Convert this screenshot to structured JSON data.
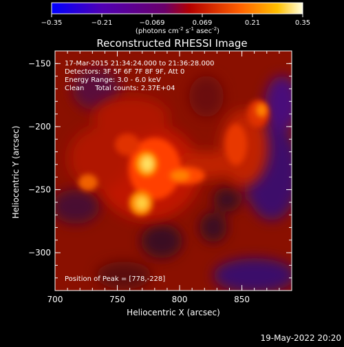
{
  "chart_data": {
    "type": "heatmap",
    "title": "Reconstructed RHESSI Image",
    "xlabel": "Heliocentric X (arcsec)",
    "ylabel": "Heliocentric Y (arcsec)",
    "xlim": [
      700,
      890
    ],
    "ylim": [
      -330,
      -140
    ],
    "xticks": [
      700,
      750,
      800,
      850
    ],
    "yticks": [
      -150,
      -200,
      -250,
      -300
    ],
    "colorbar": {
      "range": [
        -0.35,
        0.35
      ],
      "ticks": [
        "-0.35",
        "-0.21",
        "-0.069",
        "0.069",
        "0.21",
        "0.35"
      ],
      "unit_label": "(photons cm",
      "unit_sup1": "-2",
      "unit_mid1": " s",
      "unit_sup2": "-1",
      "unit_mid2": " asec",
      "unit_sup3": "-2",
      "unit_end": ")"
    },
    "annotations": [
      "17-Mar-2015 21:34:24.000 to 21:36:28.000",
      "Detectors: 3F 5F 6F 7F 8F 9F, Att 0",
      "Energy Range: 3.0 - 6.0 keV",
      "Clean     Total counts: 2.37E+04"
    ],
    "peak_label": "Position of Peak = [778,-228]",
    "peak": [
      778,
      -228
    ],
    "sources": [
      {
        "x": 772,
        "y": -228,
        "intensity": 0.35
      },
      {
        "x": 768,
        "y": -258,
        "intensity": 0.3
      },
      {
        "x": 800,
        "y": -238,
        "intensity": 0.22
      },
      {
        "x": 845,
        "y": -218,
        "intensity": 0.18
      },
      {
        "x": 868,
        "y": -180,
        "intensity": 0.15
      },
      {
        "x": 730,
        "y": -240,
        "intensity": 0.12
      },
      {
        "x": 745,
        "y": -195,
        "intensity": 0.1
      }
    ]
  },
  "footer_timestamp": "19-May-2022 20:20"
}
